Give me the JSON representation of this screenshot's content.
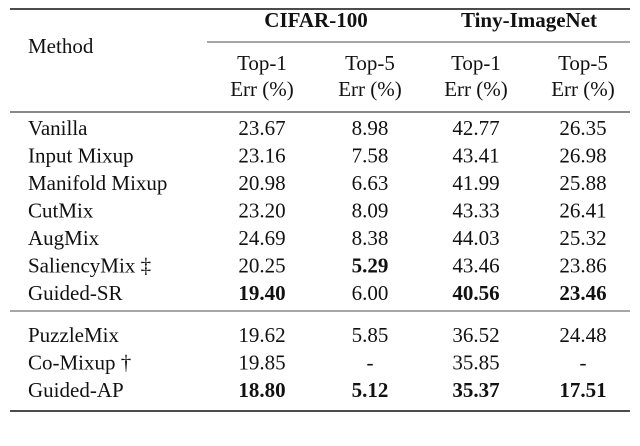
{
  "table": {
    "header": {
      "method": "Method",
      "groups": [
        "CIFAR-100",
        "Tiny-ImageNet"
      ],
      "columns": [
        [
          "Top-1",
          "Err (%)"
        ],
        [
          "Top-5",
          "Err (%)"
        ],
        [
          "Top-1",
          "Err (%)"
        ],
        [
          "Top-5",
          "Err (%)"
        ]
      ]
    },
    "sections": [
      [
        {
          "method": "Vanilla",
          "cells": [
            "23.67",
            "8.98",
            "42.77",
            "26.35"
          ]
        },
        {
          "method": "Input Mixup",
          "cells": [
            "23.16",
            "7.58",
            "43.41",
            "26.98"
          ]
        },
        {
          "method": "Manifold Mixup",
          "cells": [
            "20.98",
            "6.63",
            "41.99",
            "25.88"
          ]
        },
        {
          "method": "CutMix",
          "cells": [
            "23.20",
            "8.09",
            "43.33",
            "26.41"
          ]
        },
        {
          "method": "AugMix",
          "cells": [
            "24.69",
            "8.38",
            "44.03",
            "25.32"
          ]
        },
        {
          "method": "SaliencyMix ‡",
          "cells": [
            "20.25",
            {
              "text": "5.29",
              "bold": true
            },
            "43.46",
            "23.86"
          ]
        },
        {
          "method": "Guided-SR",
          "cells": [
            {
              "text": "19.40",
              "bold": true
            },
            "6.00",
            {
              "text": "40.56",
              "bold": true
            },
            {
              "text": "23.46",
              "bold": true
            }
          ]
        }
      ],
      [
        {
          "method": "PuzzleMix",
          "cells": [
            "19.62",
            "5.85",
            "36.52",
            "24.48"
          ]
        },
        {
          "method": "Co-Mixup †",
          "cells": [
            "19.85",
            "-",
            "35.85",
            "-"
          ]
        },
        {
          "method": "Guided-AP",
          "cells": [
            {
              "text": "18.80",
              "bold": true
            },
            {
              "text": "5.12",
              "bold": true
            },
            {
              "text": "35.37",
              "bold": true
            },
            {
              "text": "17.51",
              "bold": true
            }
          ]
        }
      ]
    ]
  }
}
